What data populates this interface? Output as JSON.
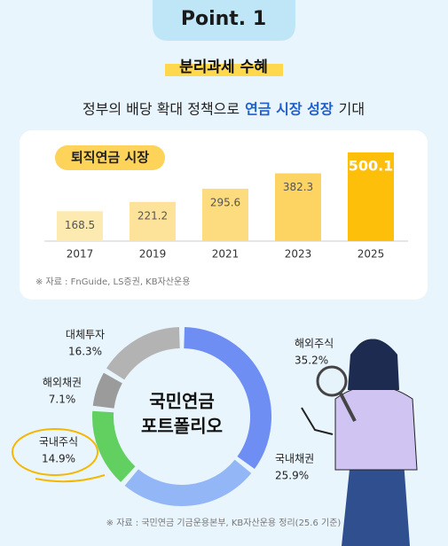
{
  "header": {
    "badge": "Point. 1",
    "title": "분리과세 수혜",
    "subtitle": [
      "정부의 배당 확대 정책으로",
      "연금 시장 성장",
      "기대"
    ]
  },
  "chart_data": [
    {
      "type": "bar",
      "title": "퇴직연금 시장",
      "categories": [
        "2017",
        "2019",
        "2021",
        "2023",
        "2025"
      ],
      "values": [
        168.5,
        221.2,
        295.6,
        382.3,
        500.1
      ],
      "colors": [
        "#fdeab0",
        "#fde39a",
        "#fddb7f",
        "#fdd361",
        "#fdbf0a"
      ],
      "note": "※ 자료 : FnGuide, LS증권, KB자산운용"
    },
    {
      "type": "donut",
      "title": [
        "국민연금",
        "포트폴리오"
      ],
      "categories": [
        "해외주식",
        "국내채권",
        "국내주식",
        "해외채권",
        "대체투자"
      ],
      "values": [
        35.2,
        25.9,
        14.9,
        7.1,
        16.3
      ],
      "value_labels": [
        "35.2%",
        "25.9%",
        "14.9%",
        "7.1%",
        "16.3%"
      ],
      "colors": [
        "#6e8ef4",
        "#93b6f6",
        "#62d060",
        "#9b9b9b",
        "#b3b3b3"
      ],
      "note": "※ 자료 : 국민연금 기금운용본부, KB자산운용 정리(25.6 기준)"
    }
  ]
}
